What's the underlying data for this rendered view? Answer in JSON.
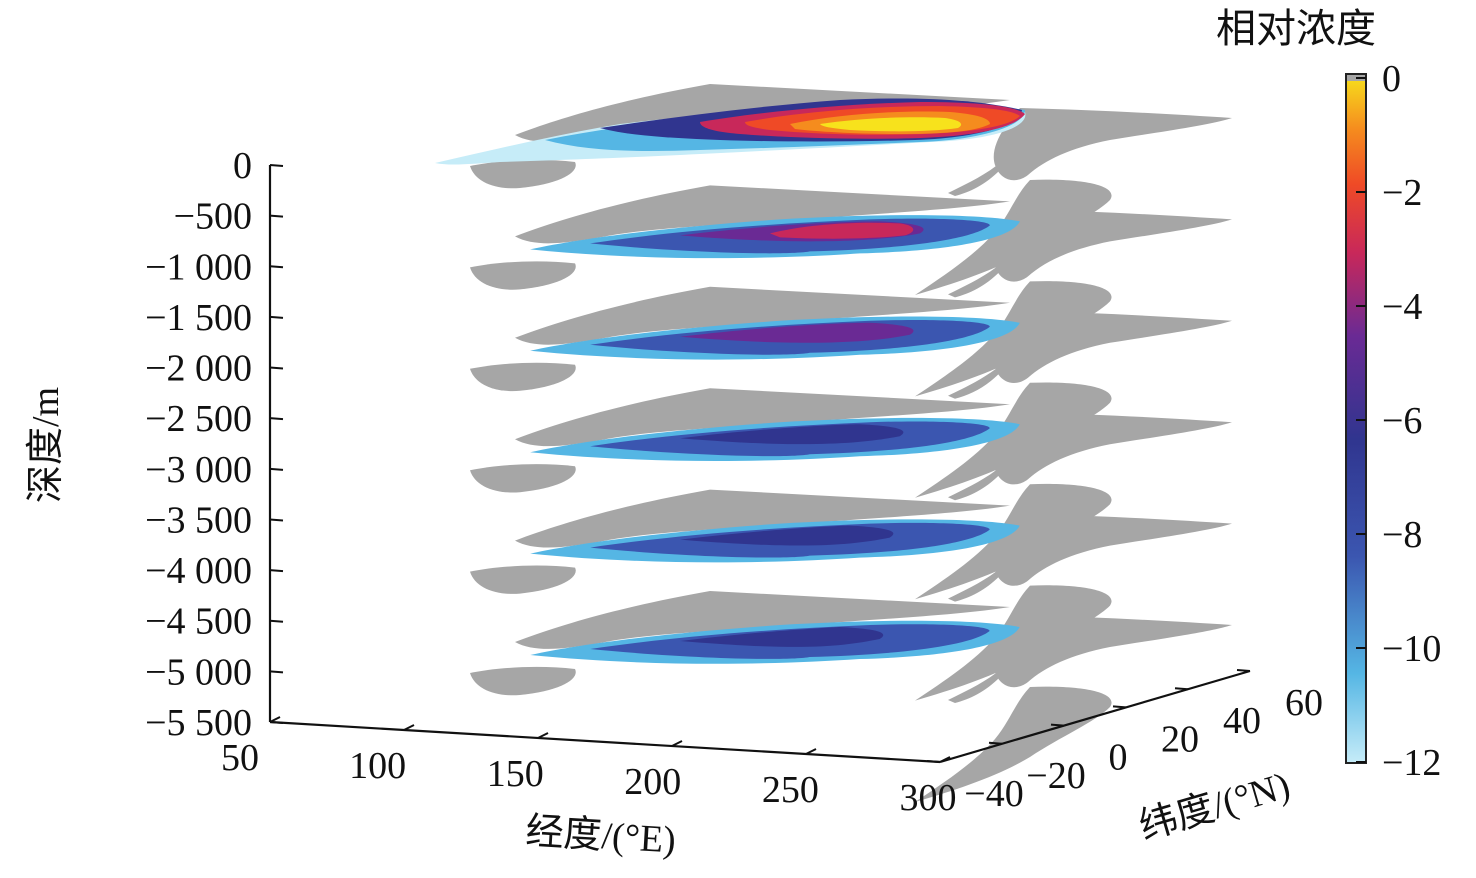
{
  "chart_data": {
    "type": "3d-stacked-slices",
    "zlabel": "深度/m",
    "xlabel": "经度/(°E)",
    "ylabel": "纬度/(°N)",
    "z_ticks": [
      "0",
      "−500",
      "−1 000",
      "−1 500",
      "−2 000",
      "−2 500",
      "−3 000",
      "−3 500",
      "−4 000",
      "−4 500",
      "−5 000",
      "−5 500"
    ],
    "z_tick_values": [
      0,
      -500,
      -1000,
      -1500,
      -2000,
      -2500,
      -3000,
      -3500,
      -4000,
      -4500,
      -5000,
      -5500
    ],
    "zlim": [
      -5500,
      0
    ],
    "x_ticks": [
      "50",
      "100",
      "150",
      "200",
      "250",
      "300"
    ],
    "x_tick_values": [
      50,
      100,
      150,
      200,
      250,
      300
    ],
    "xlim": [
      50,
      300
    ],
    "y_ticks": [
      "−40",
      "−20",
      "0",
      "20",
      "40",
      "60"
    ],
    "y_tick_values": [
      -40,
      -20,
      0,
      20,
      40,
      60
    ],
    "ylim": [
      -40,
      60
    ],
    "slice_depths": [
      0,
      -1000,
      -2000,
      -3000,
      -4000,
      -5000
    ],
    "colorbar": {
      "title": "相对浓度",
      "ticks": [
        "0",
        "−2",
        "−4",
        "−6",
        "−8",
        "−10",
        "−12"
      ],
      "tick_values": [
        0,
        -2,
        -4,
        -6,
        -8,
        -10,
        -12
      ],
      "range": [
        -12,
        0
      ],
      "colors": [
        "#c6ecf8",
        "#55b6e4",
        "#3b56b0",
        "#30358f",
        "#6a2a94",
        "#c8285a",
        "#ef4a26",
        "#f58c1e",
        "#f7e21c"
      ]
    },
    "land_color": "#a6a6a6",
    "grid": false
  }
}
